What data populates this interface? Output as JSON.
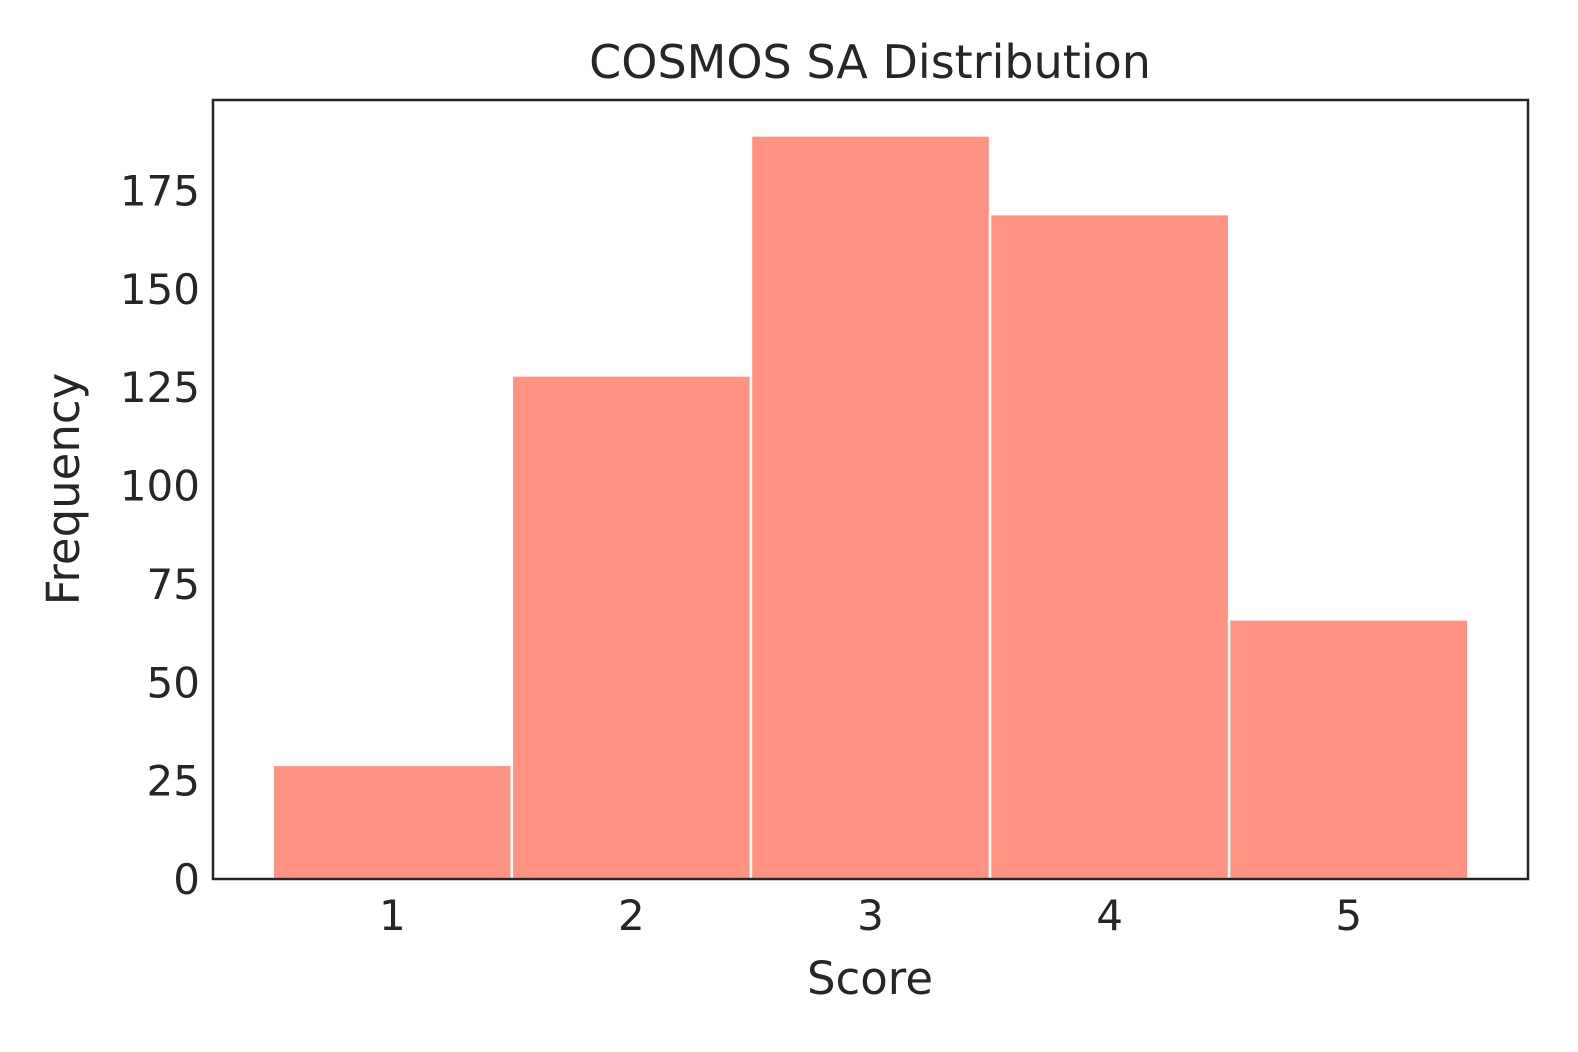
{
  "chart_data": {
    "type": "bar",
    "title": "COSMOS SA Distribution",
    "xlabel": "Score",
    "ylabel": "Frequency",
    "categories": [
      "1",
      "2",
      "3",
      "4",
      "5"
    ],
    "values": [
      29,
      128,
      189,
      169,
      66
    ],
    "xlim": [
      0.25,
      5.75
    ],
    "ylim": [
      0,
      198
    ],
    "yticks": [
      0,
      25,
      50,
      75,
      100,
      125,
      150,
      175
    ],
    "grid": false,
    "bar_color": "#FF9280",
    "bar_edge_color": "#ffffff",
    "frame_color": "#262626"
  }
}
